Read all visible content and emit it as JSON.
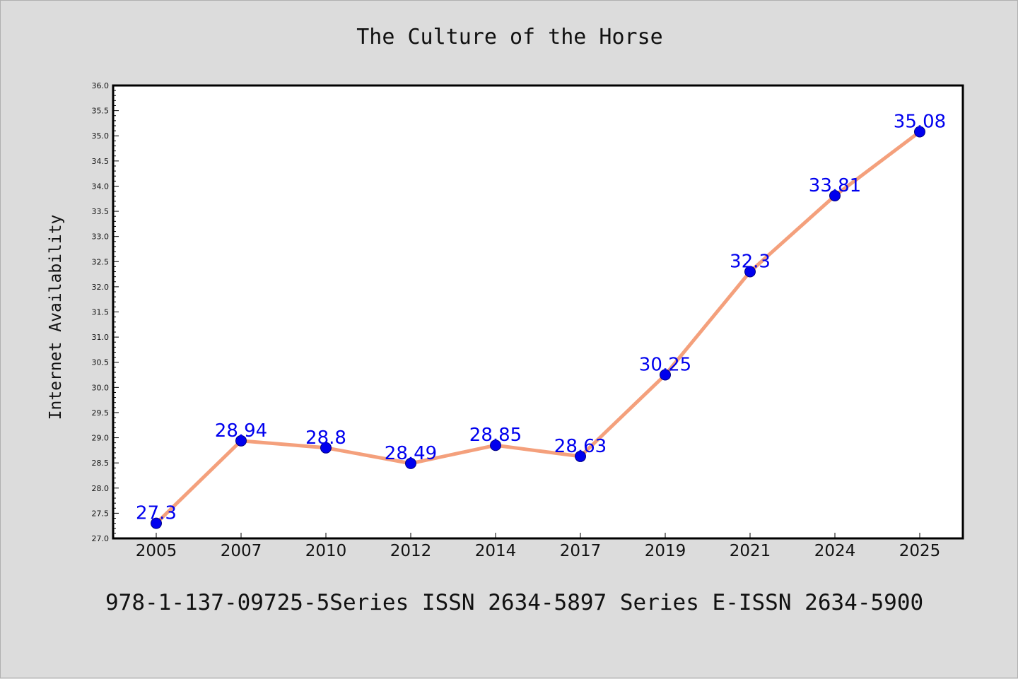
{
  "chart_data": {
    "type": "line",
    "title": "The Culture of the Horse",
    "xlabel": "",
    "ylabel": "Internet Availability",
    "categories": [
      "2005",
      "2007",
      "2010",
      "2012",
      "2014",
      "2017",
      "2019",
      "2021",
      "2024",
      "2025"
    ],
    "series": [
      {
        "values": [
          27.3,
          28.94,
          28.8,
          28.49,
          28.85,
          28.63,
          30.25,
          32.3,
          33.81,
          35.08
        ],
        "labels": [
          "27.3",
          "28.94",
          "28.8",
          "28.49",
          "28.85",
          "28.63",
          "30.25",
          "32.3",
          "33.81",
          "35.08"
        ]
      }
    ],
    "ylim": [
      27.0,
      36.0
    ],
    "yticks": [
      "27.0",
      "27.5",
      "28.0",
      "28.5",
      "29.0",
      "29.5",
      "30.0",
      "30.5",
      "31.0",
      "31.5",
      "32.0",
      "32.5",
      "33.0",
      "33.5",
      "34.0",
      "34.5",
      "35.0",
      "35.5",
      "36.0"
    ],
    "grid": false,
    "colors": {
      "line": "#f4a07c",
      "marker": "#0000ee",
      "marker_edge": "#000080",
      "label": "#0000ee",
      "background": "#dcdcdc",
      "plot_bg": "#ffffff"
    }
  },
  "footer": "978-1-137-09725-5Series ISSN 2634-5897 Series E-ISSN 2634-5900"
}
